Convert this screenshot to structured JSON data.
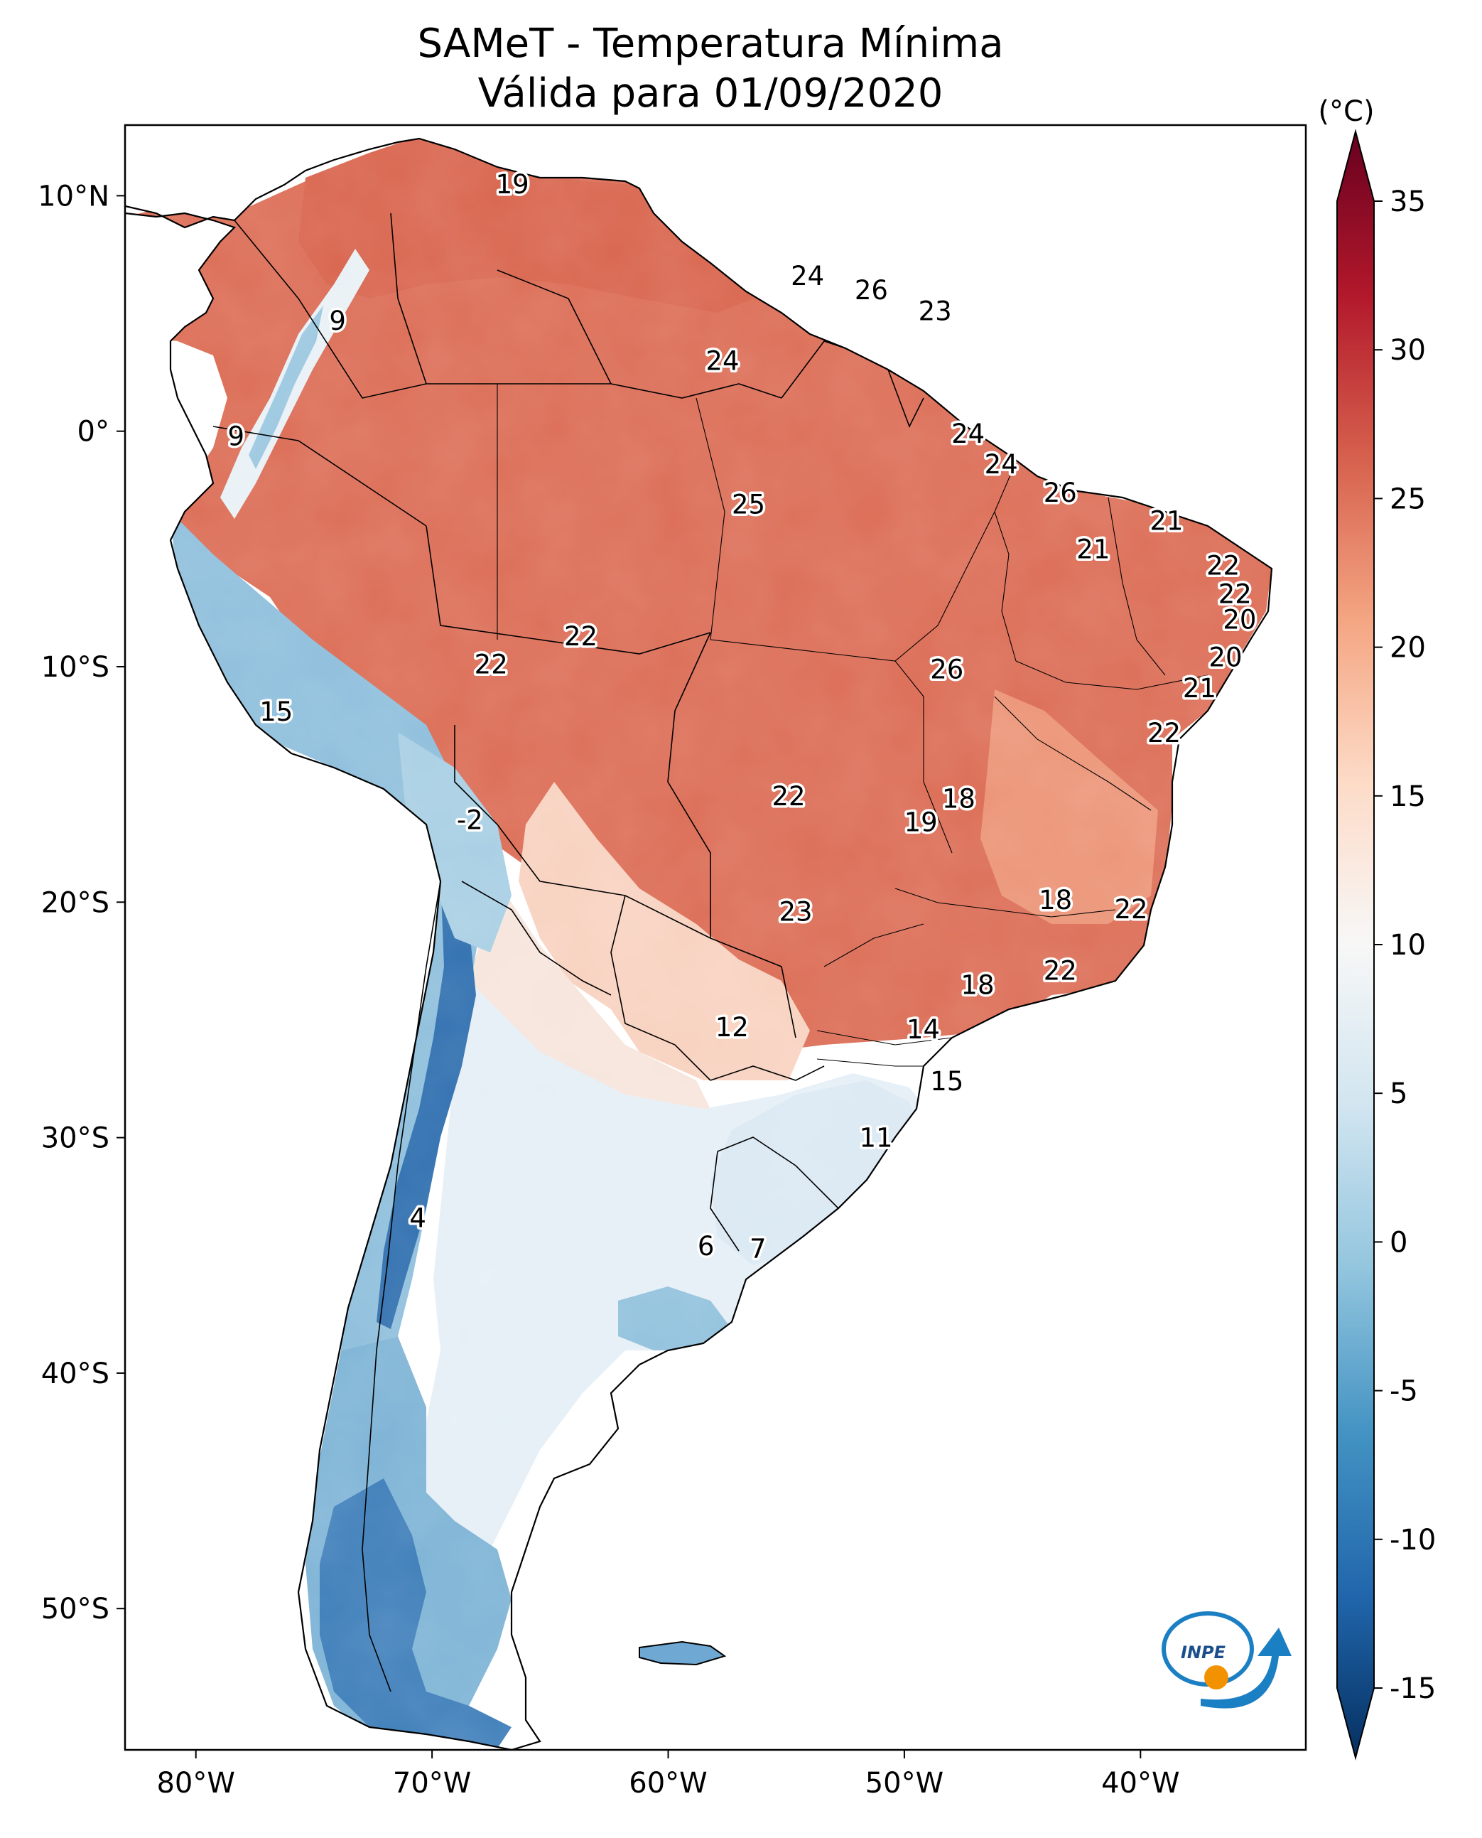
{
  "title_line1": "SAMeT - Temperatura Mínima",
  "title_line2": "Válida para 01/09/2020",
  "colorbar": {
    "unit": "(°C)",
    "min": -15,
    "max": 35,
    "ticks": [
      {
        "value": 35,
        "label": "35"
      },
      {
        "value": 30,
        "label": "30"
      },
      {
        "value": 25,
        "label": "25"
      },
      {
        "value": 20,
        "label": "20"
      },
      {
        "value": 15,
        "label": "15"
      },
      {
        "value": 10,
        "label": "10"
      },
      {
        "value": 5,
        "label": "5"
      },
      {
        "value": 0,
        "label": "0"
      },
      {
        "value": -5,
        "label": "-5"
      },
      {
        "value": -10,
        "label": "-10"
      },
      {
        "value": -15,
        "label": "-15"
      }
    ]
  },
  "axes": {
    "lon_range": [
      -83,
      -33
    ],
    "lat_range": [
      -56,
      13
    ],
    "lon_ticks": [
      {
        "value": -80,
        "label": "80°W"
      },
      {
        "value": -70,
        "label": "70°W"
      },
      {
        "value": -60,
        "label": "60°W"
      },
      {
        "value": -50,
        "label": "50°W"
      },
      {
        "value": -40,
        "label": "40°W"
      }
    ],
    "lat_ticks": [
      {
        "value": 10,
        "label": "10°N"
      },
      {
        "value": 0,
        "label": "0°"
      },
      {
        "value": -10,
        "label": "10°S"
      },
      {
        "value": -20,
        "label": "20°S"
      },
      {
        "value": -30,
        "label": "30°S"
      },
      {
        "value": -40,
        "label": "40°S"
      },
      {
        "value": -50,
        "label": "50°S"
      }
    ]
  },
  "station_values": [
    {
      "lon": -66.6,
      "lat": 10.5,
      "label": "19"
    },
    {
      "lon": -54.1,
      "lat": 6.6,
      "label": "24"
    },
    {
      "lon": -51.4,
      "lat": 6.0,
      "label": "26"
    },
    {
      "lon": -48.7,
      "lat": 5.1,
      "label": "23"
    },
    {
      "lon": -57.7,
      "lat": 3.0,
      "label": "24"
    },
    {
      "lon": -74.0,
      "lat": 4.7,
      "label": "9"
    },
    {
      "lon": -78.3,
      "lat": -0.2,
      "label": "9"
    },
    {
      "lon": -47.3,
      "lat": -0.1,
      "label": "24"
    },
    {
      "lon": -45.9,
      "lat": -1.4,
      "label": "24"
    },
    {
      "lon": -43.4,
      "lat": -2.6,
      "label": "26"
    },
    {
      "lon": -38.9,
      "lat": -3.8,
      "label": "21"
    },
    {
      "lon": -56.6,
      "lat": -3.1,
      "label": "25"
    },
    {
      "lon": -42.0,
      "lat": -5.0,
      "label": "21"
    },
    {
      "lon": -36.5,
      "lat": -5.7,
      "label": "22"
    },
    {
      "lon": -36.0,
      "lat": -6.9,
      "label": "22"
    },
    {
      "lon": -35.8,
      "lat": -8.0,
      "label": "20"
    },
    {
      "lon": -36.4,
      "lat": -9.6,
      "label": "20"
    },
    {
      "lon": -37.5,
      "lat": -10.9,
      "label": "21"
    },
    {
      "lon": -63.7,
      "lat": -8.7,
      "label": "22"
    },
    {
      "lon": -67.5,
      "lat": -9.9,
      "label": "22"
    },
    {
      "lon": -48.2,
      "lat": -10.1,
      "label": "26"
    },
    {
      "lon": -39.0,
      "lat": -12.8,
      "label": "22"
    },
    {
      "lon": -76.6,
      "lat": -11.9,
      "label": "15"
    },
    {
      "lon": -54.9,
      "lat": -15.5,
      "label": "22"
    },
    {
      "lon": -47.7,
      "lat": -15.6,
      "label": "18"
    },
    {
      "lon": -49.3,
      "lat": -16.6,
      "label": "19"
    },
    {
      "lon": -68.4,
      "lat": -16.5,
      "label": "-2"
    },
    {
      "lon": -54.6,
      "lat": -20.4,
      "label": "23"
    },
    {
      "lon": -43.6,
      "lat": -19.9,
      "label": "18"
    },
    {
      "lon": -40.4,
      "lat": -20.3,
      "label": "22"
    },
    {
      "lon": -43.4,
      "lat": -22.9,
      "label": "22"
    },
    {
      "lon": -46.9,
      "lat": -23.5,
      "label": "18"
    },
    {
      "lon": -57.3,
      "lat": -25.3,
      "label": "12"
    },
    {
      "lon": -49.2,
      "lat": -25.4,
      "label": "14"
    },
    {
      "lon": -48.2,
      "lat": -27.6,
      "label": "15"
    },
    {
      "lon": -51.2,
      "lat": -30.0,
      "label": "11"
    },
    {
      "lon": -70.6,
      "lat": -33.4,
      "label": "4"
    },
    {
      "lon": -58.4,
      "lat": -34.6,
      "label": "6"
    },
    {
      "lon": -56.2,
      "lat": -34.7,
      "label": "7"
    }
  ],
  "logo": {
    "text": "INPE"
  },
  "colors": {
    "ramp": [
      "#053061",
      "#2166ac",
      "#4393c3",
      "#92c5de",
      "#d1e5f0",
      "#f7f7f7",
      "#fddbc7",
      "#f4a582",
      "#d6604d",
      "#b2182b",
      "#67001f"
    ],
    "logo_blue": "#1b7fc4",
    "logo_orange": "#f39200"
  }
}
